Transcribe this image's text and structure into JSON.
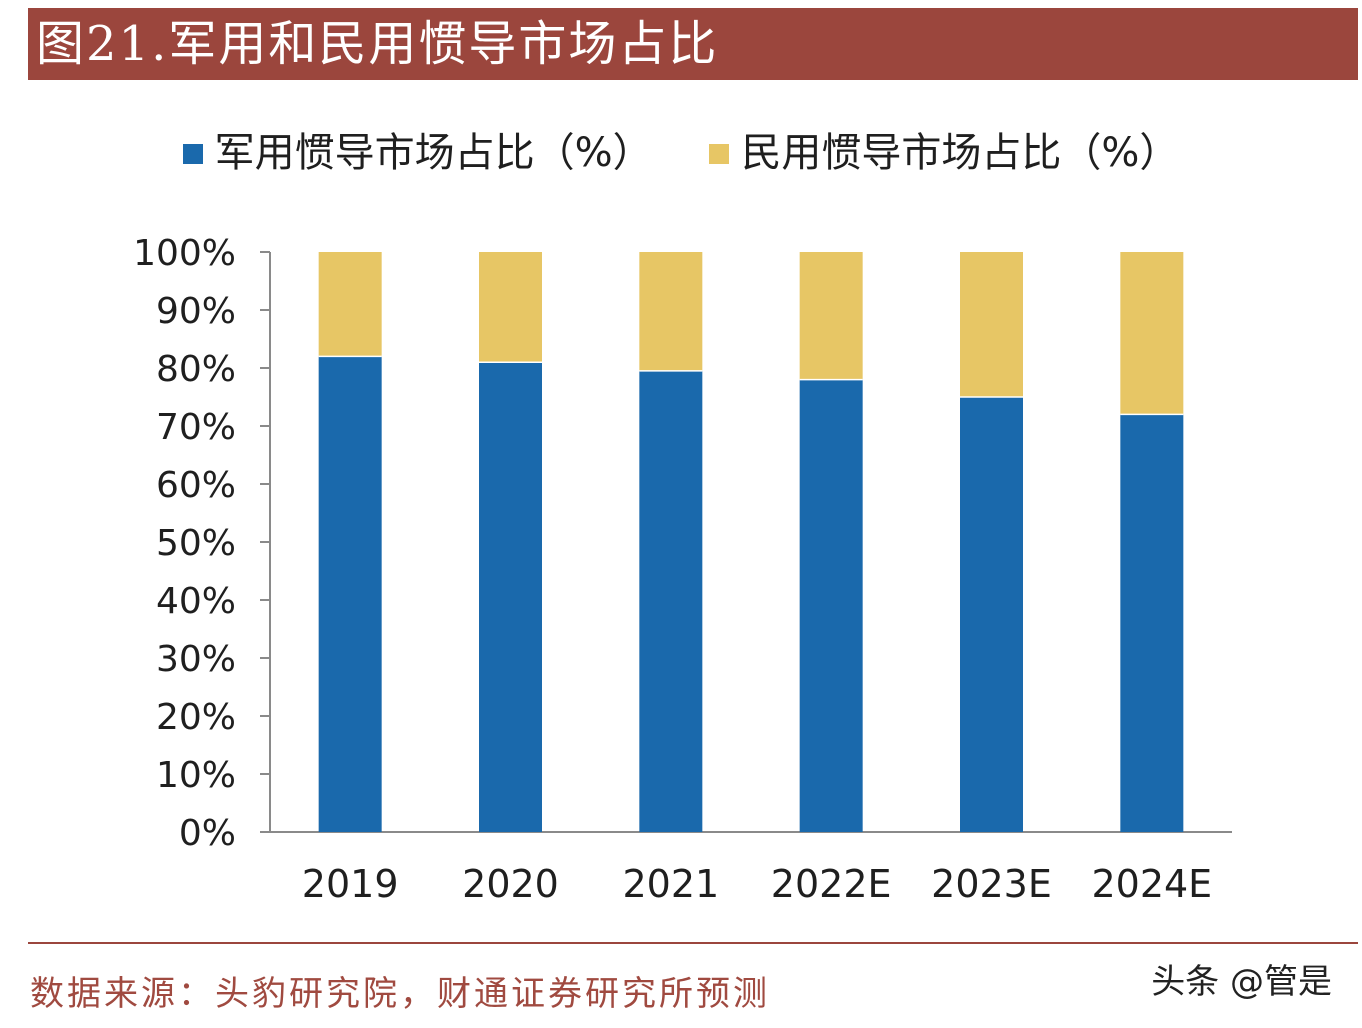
{
  "header": {
    "title": "图21.军用和民用惯导市场占比"
  },
  "footer": {
    "source": "数据来源：头豹研究院，财通证券研究所预测",
    "watermark": "头条 @管是"
  },
  "colors": {
    "header_bg": "#9b463d",
    "military": "#1a69ac",
    "civil": "#e7c665",
    "axis": "#8a8a8a",
    "source_text": "#a04a40"
  },
  "chart_data": {
    "type": "bar",
    "stacked": true,
    "title": "",
    "xlabel": "",
    "ylabel": "",
    "ylim": [
      0,
      100
    ],
    "yticks": [
      "0%",
      "10%",
      "20%",
      "30%",
      "40%",
      "50%",
      "60%",
      "70%",
      "80%",
      "90%",
      "100%"
    ],
    "categories": [
      "2019",
      "2020",
      "2021",
      "2022E",
      "2023E",
      "2024E"
    ],
    "legend_position": "top",
    "grid": false,
    "series": [
      {
        "name": "军用惯导市场占比（%）",
        "color": "#1a69ac",
        "values": [
          82,
          81,
          79.5,
          78,
          75,
          72
        ]
      },
      {
        "name": "民用惯导市场占比（%）",
        "color": "#e7c665",
        "values": [
          18,
          19,
          20.5,
          22,
          25,
          28
        ]
      }
    ]
  }
}
